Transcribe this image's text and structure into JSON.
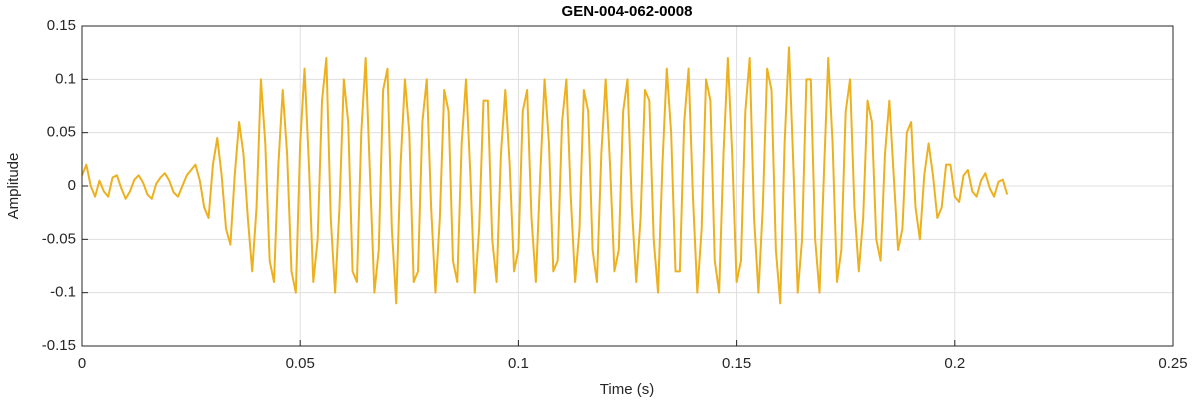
{
  "chart_data": {
    "type": "line",
    "title": "GEN-004-062-0008",
    "x_label": "Time (s)",
    "y_label": "Amplitude",
    "xlim": [
      0,
      0.25
    ],
    "xticks": [
      0,
      0.05,
      0.1,
      0.15,
      0.2,
      0.25
    ],
    "ylim": [
      -0.15,
      0.15
    ],
    "yticks": [
      -0.15,
      -0.1,
      -0.05,
      0,
      0.05,
      0.1,
      0.15
    ],
    "grid": true,
    "x": [
      0,
      0.001,
      0.002,
      0.003,
      0.004,
      0.005,
      0.006,
      0.007,
      0.008,
      0.009,
      0.01,
      0.011,
      0.012,
      0.013,
      0.014,
      0.015,
      0.016,
      0.017,
      0.018,
      0.019,
      0.02,
      0.021,
      0.022,
      0.023,
      0.024,
      0.025,
      0.026,
      0.027,
      0.028,
      0.029,
      0.03,
      0.031,
      0.032,
      0.033,
      0.034,
      0.035,
      0.036,
      0.037,
      0.038,
      0.039,
      0.04,
      0.041,
      0.042,
      0.043,
      0.044,
      0.045,
      0.046,
      0.047,
      0.048,
      0.049,
      0.05,
      0.051,
      0.052,
      0.053,
      0.054,
      0.055,
      0.056,
      0.057,
      0.058,
      0.059,
      0.06,
      0.061,
      0.062,
      0.063,
      0.064,
      0.065,
      0.066,
      0.067,
      0.068,
      0.069,
      0.07,
      0.071,
      0.072,
      0.073,
      0.074,
      0.075,
      0.076,
      0.077,
      0.078,
      0.079,
      0.08,
      0.081,
      0.082,
      0.083,
      0.084,
      0.085,
      0.086,
      0.087,
      0.088,
      0.089,
      0.09,
      0.091,
      0.092,
      0.093,
      0.094,
      0.095,
      0.096,
      0.097,
      0.098,
      0.099,
      0.1,
      0.101,
      0.102,
      0.103,
      0.104,
      0.105,
      0.106,
      0.107,
      0.108,
      0.109,
      0.11,
      0.111,
      0.112,
      0.113,
      0.114,
      0.115,
      0.116,
      0.117,
      0.118,
      0.119,
      0.12,
      0.121,
      0.122,
      0.123,
      0.124,
      0.125,
      0.126,
      0.127,
      0.128,
      0.129,
      0.13,
      0.131,
      0.132,
      0.133,
      0.134,
      0.135,
      0.136,
      0.137,
      0.138,
      0.139,
      0.14,
      0.141,
      0.142,
      0.143,
      0.144,
      0.145,
      0.146,
      0.147,
      0.148,
      0.149,
      0.15,
      0.151,
      0.152,
      0.153,
      0.154,
      0.155,
      0.156,
      0.157,
      0.158,
      0.159,
      0.16,
      0.161,
      0.162,
      0.163,
      0.164,
      0.165,
      0.166,
      0.167,
      0.168,
      0.169,
      0.17,
      0.171,
      0.172,
      0.173,
      0.174,
      0.175,
      0.176,
      0.177,
      0.178,
      0.179,
      0.18,
      0.181,
      0.182,
      0.183,
      0.184,
      0.185,
      0.186,
      0.187,
      0.188,
      0.189,
      0.19,
      0.191,
      0.192,
      0.193,
      0.194,
      0.195,
      0.196,
      0.197,
      0.198,
      0.199,
      0.2,
      0.201,
      0.202,
      0.203,
      0.204,
      0.205,
      0.206,
      0.207,
      0.208,
      0.209,
      0.21,
      0.211,
      0.212
    ],
    "series": [
      {
        "color": "#EDB120",
        "values": [
          0.01,
          0.02,
          0,
          -0.01,
          0.005,
          -0.005,
          -0.01,
          0.008,
          0.01,
          -0.002,
          -0.012,
          -0.005,
          0.006,
          0.01,
          0.003,
          -0.008,
          -0.012,
          0.002,
          0.008,
          0.012,
          0.005,
          -0.006,
          -0.01,
          0,
          0.01,
          0.015,
          0.02,
          0.005,
          -0.02,
          -0.03,
          0.02,
          0.045,
          0.01,
          -0.04,
          -0.055,
          0.01,
          0.06,
          0.03,
          -0.03,
          -0.08,
          -0.02,
          0.1,
          0.04,
          -0.07,
          -0.09,
          0.02,
          0.09,
          0.03,
          -0.08,
          -0.1,
          0.04,
          0.11,
          0.02,
          -0.09,
          -0.05,
          0.08,
          0.12,
          -0.03,
          -0.1,
          -0.02,
          0.1,
          0.06,
          -0.08,
          -0.09,
          0.05,
          0.12,
          0.01,
          -0.1,
          -0.06,
          0.09,
          0.11,
          -0.04,
          -0.11,
          0.02,
          0.1,
          0.05,
          -0.09,
          -0.08,
          0.06,
          0.1,
          -0.02,
          -0.1,
          -0.03,
          0.09,
          0.07,
          -0.07,
          -0.09,
          0.04,
          0.1,
          0.01,
          -0.1,
          -0.04,
          0.08,
          0.08,
          -0.05,
          -0.09,
          0.03,
          0.09,
          0.02,
          -0.08,
          -0.06,
          0.07,
          0.09,
          -0.03,
          -0.09,
          0.01,
          0.1,
          0.04,
          -0.08,
          -0.07,
          0.06,
          0.1,
          -0.01,
          -0.09,
          -0.04,
          0.09,
          0.07,
          -0.06,
          -0.09,
          0.03,
          0.1,
          0.02,
          -0.08,
          -0.06,
          0.07,
          0.1,
          -0.02,
          -0.09,
          -0.03,
          0.09,
          0.08,
          -0.05,
          -0.1,
          0.02,
          0.11,
          0.05,
          -0.08,
          -0.08,
          0.06,
          0.11,
          -0.01,
          -0.1,
          -0.04,
          0.1,
          0.08,
          -0.07,
          -0.1,
          0.03,
          0.12,
          0.03,
          -0.09,
          -0.07,
          0.07,
          0.12,
          -0.03,
          -0.1,
          -0.02,
          0.11,
          0.09,
          -0.06,
          -0.11,
          0.04,
          0.13,
          0.02,
          -0.1,
          -0.05,
          0.1,
          0.1,
          -0.05,
          -0.1,
          0.01,
          0.12,
          0.04,
          -0.09,
          -0.06,
          0.07,
          0.1,
          -0.02,
          -0.08,
          -0.03,
          0.08,
          0.06,
          -0.05,
          -0.07,
          0.03,
          0.08,
          0.01,
          -0.06,
          -0.04,
          0.05,
          0.06,
          -0.02,
          -0.05,
          0.01,
          0.04,
          0.01,
          -0.03,
          -0.02,
          0.02,
          0.02,
          -0.01,
          -0.015,
          0.01,
          0.015,
          -0.005,
          -0.01,
          0.005,
          0.012,
          -0.002,
          -0.01,
          0.004,
          0.006,
          -0.008
        ]
      }
    ]
  }
}
